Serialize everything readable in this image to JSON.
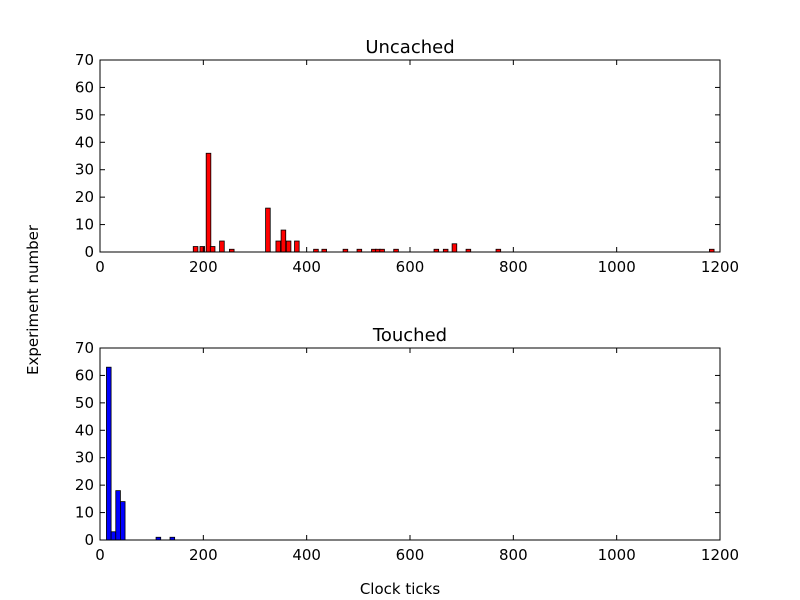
{
  "figure": {
    "xlabel": "Clock ticks",
    "ylabel": "Experiment number"
  },
  "chart_data": [
    {
      "type": "bar",
      "title": "Uncached",
      "color": "#ff0000",
      "bin_width": 9,
      "xlim": [
        0,
        1200
      ],
      "ylim": [
        0,
        70
      ],
      "xticks": [
        0,
        200,
        400,
        600,
        800,
        1000,
        1200
      ],
      "yticks": [
        0,
        10,
        20,
        30,
        40,
        50,
        60,
        70
      ],
      "x": [
        185,
        198,
        210,
        218,
        236,
        255,
        325,
        345,
        355,
        365,
        381,
        418,
        434,
        475,
        502,
        530,
        538,
        546,
        573,
        651,
        669,
        686,
        713,
        771,
        1184
      ],
      "values": [
        2,
        2,
        36,
        2,
        4,
        1,
        16,
        4,
        8,
        4,
        4,
        1,
        1,
        1,
        1,
        1,
        1,
        1,
        1,
        1,
        1,
        3,
        1,
        1,
        1
      ]
    },
    {
      "type": "bar",
      "title": "Touched",
      "color": "#0000ff",
      "bin_width": 9,
      "xlim": [
        0,
        1200
      ],
      "ylim": [
        0,
        70
      ],
      "xticks": [
        0,
        200,
        400,
        600,
        800,
        1000,
        1200
      ],
      "yticks": [
        0,
        10,
        20,
        30,
        40,
        50,
        60,
        70
      ],
      "x": [
        17,
        26,
        35,
        44,
        113,
        140
      ],
      "values": [
        63,
        3,
        18,
        14,
        1,
        1
      ]
    }
  ]
}
